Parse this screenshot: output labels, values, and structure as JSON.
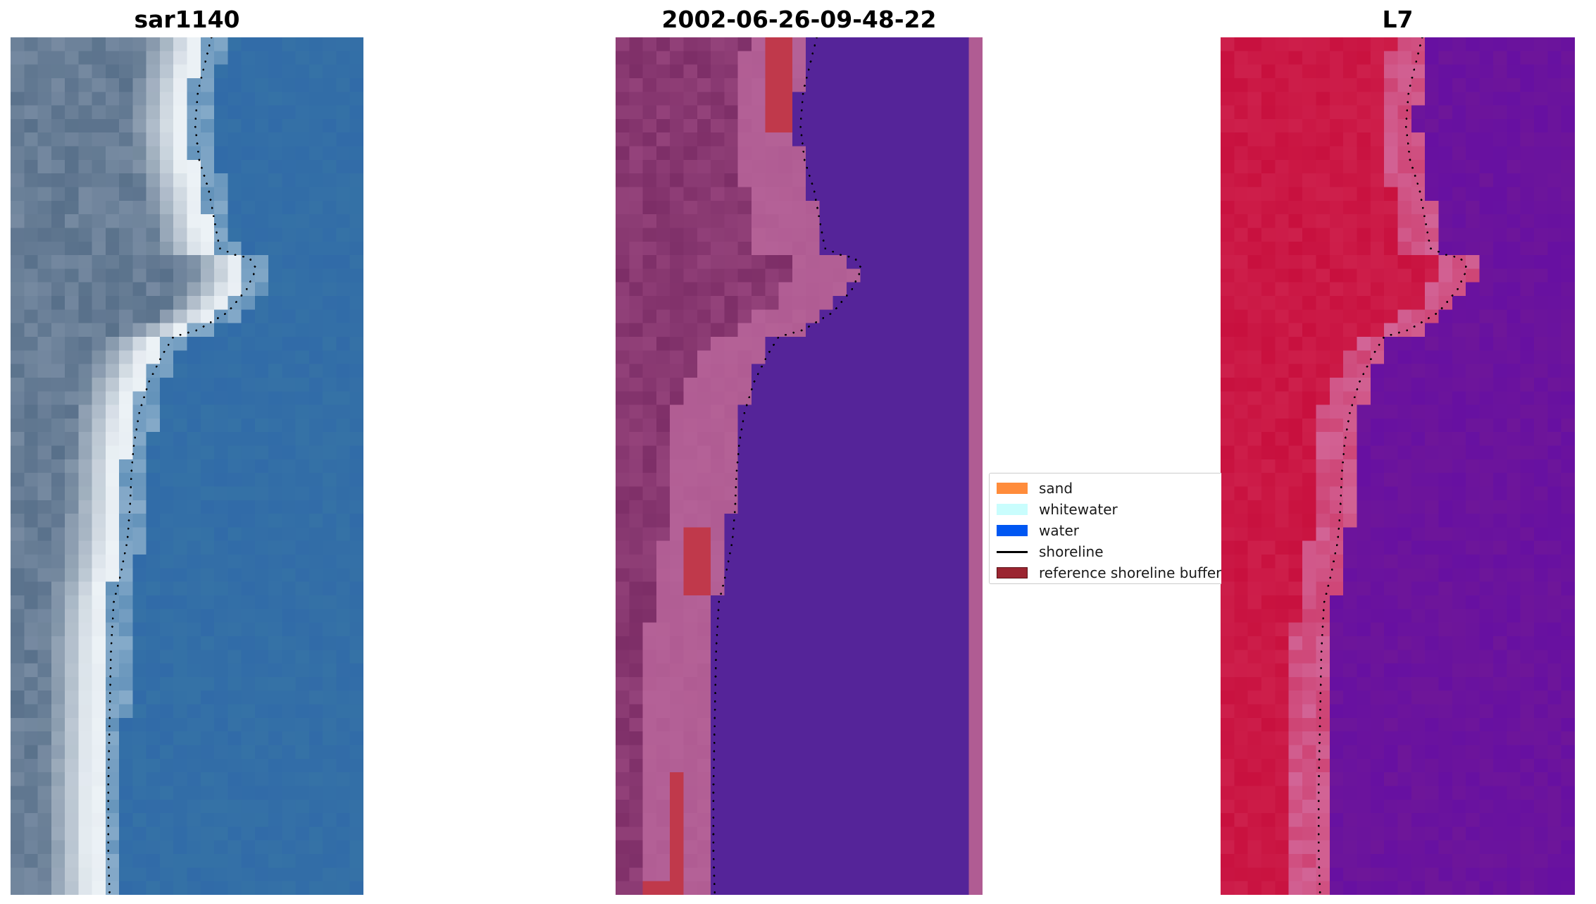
{
  "panels": [
    {
      "title": "sar1140",
      "kind": "rgb"
    },
    {
      "title": "2002-06-26-09-48-22",
      "kind": "classified"
    },
    {
      "title": "L7",
      "kind": "index"
    }
  ],
  "legend": {
    "items": [
      {
        "label": "sand",
        "color": "#ff8c3b",
        "type": "patch"
      },
      {
        "label": "whitewater",
        "color": "#c9fdfd",
        "type": "patch"
      },
      {
        "label": "water",
        "color": "#0057f2",
        "type": "patch"
      },
      {
        "label": "shoreline",
        "color": "#000000",
        "type": "line"
      },
      {
        "label": "reference shoreline buffer",
        "color": "#9b2530",
        "type": "patch"
      }
    ]
  },
  "colors": {
    "ocean_blue": "#3572a6",
    "classified_water": "#552499",
    "classified_sand": "#b05c93",
    "classified_land": "#7d2e67",
    "buffer_red": "#c0394b",
    "index_red": "#c8103e",
    "index_purple": "#6e1699"
  }
}
